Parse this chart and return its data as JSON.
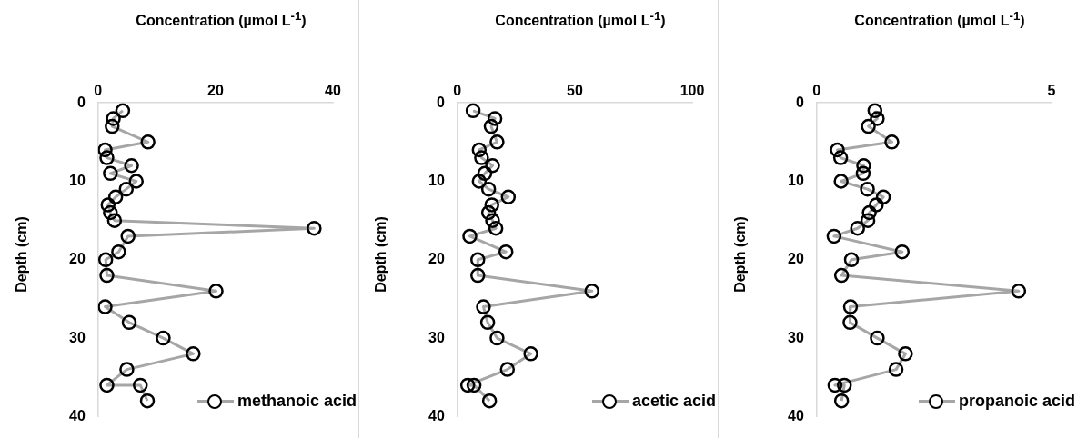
{
  "chart_data": [
    {
      "type": "line",
      "xlabel": "Concentration (µmol L$^{-1}$)",
      "ylabel": "Depth (cm)",
      "xlim": [
        0,
        40
      ],
      "xticks": [
        0,
        20,
        40
      ],
      "ylim": [
        40,
        0
      ],
      "yticks": [
        0,
        10,
        20,
        30,
        40
      ],
      "marker": "circle",
      "legend": "bottom right",
      "series": [
        {
          "name": "methanoic acid",
          "color": "#a6a6a6",
          "x": [
            4.2,
            2.6,
            2.4,
            8.5,
            1.2,
            1.5,
            5.7,
            2.1,
            6.5,
            4.8,
            3.0,
            1.7,
            2.1,
            2.8,
            36.8,
            5.1,
            3.5,
            1.3,
            1.5,
            20.1,
            1.2,
            5.3,
            11.1,
            16.2,
            4.9,
            1.5,
            7.2,
            8.4
          ],
          "values": [
            1,
            2,
            3,
            5,
            6,
            7,
            8,
            9,
            10,
            11,
            12,
            13,
            14,
            15,
            16,
            17,
            19,
            20,
            22,
            24,
            26,
            28,
            30,
            32,
            34,
            36,
            36,
            38
          ]
        }
      ]
    },
    {
      "type": "line",
      "xlabel": "Concentration (µmol L$^{-1}$)",
      "ylabel": "Depth (cm)",
      "xlim": [
        0,
        100
      ],
      "xticks": [
        0,
        50,
        100
      ],
      "ylim": [
        40,
        0
      ],
      "yticks": [
        0,
        10,
        20,
        30,
        40
      ],
      "marker": "circle",
      "legend": "bottom right",
      "series": [
        {
          "name": "acetic acid",
          "color": "#a6a6a6",
          "x": [
            6.7,
            16,
            14.4,
            16.9,
            9.3,
            10.3,
            15,
            11.7,
            9.3,
            13.3,
            21.7,
            14.7,
            13.3,
            15,
            16.4,
            5.3,
            20.7,
            8.7,
            8.7,
            57.3,
            11.1,
            12.9,
            16.9,
            31.3,
            21.3,
            4.4,
            7.1,
            13.7
          ],
          "values": [
            1,
            2,
            3,
            5,
            6,
            7,
            8,
            9,
            10,
            11,
            12,
            13,
            14,
            15,
            16,
            17,
            19,
            20,
            22,
            24,
            26,
            28,
            30,
            32,
            34,
            36,
            36,
            38
          ]
        }
      ]
    },
    {
      "type": "line",
      "xlabel": "Concentration (µmol L$^{-1}$)",
      "ylabel": "Depth (cm)",
      "xlim": [
        0,
        5
      ],
      "xticks": [
        0,
        5
      ],
      "ylim": [
        40,
        0
      ],
      "yticks": [
        0,
        10,
        20,
        30,
        40
      ],
      "marker": "circle",
      "legend": "bottom right",
      "series": [
        {
          "name": "propanoic acid",
          "color": "#a6a6a6",
          "x": [
            1.24,
            1.29,
            1.1,
            1.6,
            0.44,
            0.51,
            1.0,
            0.99,
            0.52,
            1.08,
            1.42,
            1.27,
            1.12,
            1.09,
            0.87,
            0.37,
            1.82,
            0.74,
            0.53,
            4.3,
            0.72,
            0.71,
            1.29,
            1.89,
            1.69,
            0.39,
            0.59,
            0.53
          ],
          "values": [
            1,
            2,
            3,
            5,
            6,
            7,
            8,
            9,
            10,
            11,
            12,
            13,
            14,
            15,
            16,
            17,
            19,
            20,
            22,
            24,
            26,
            28,
            30,
            32,
            34,
            36,
            36,
            38
          ]
        }
      ]
    }
  ]
}
